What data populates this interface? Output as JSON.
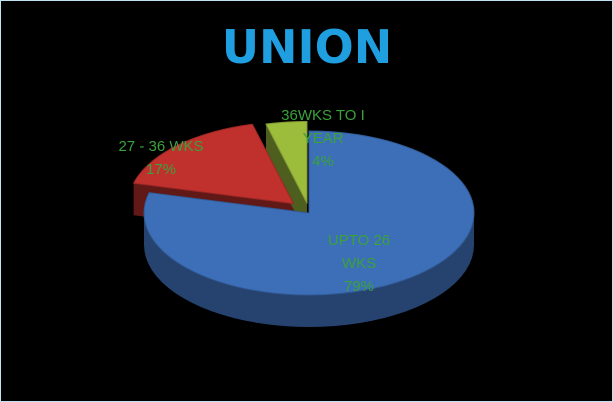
{
  "chart_data": {
    "type": "pie",
    "title": "UNION",
    "categories": [
      "UPTO 26 WKS",
      "27 - 36 WKS",
      "36WKS TO I YEAR"
    ],
    "values": [
      79,
      17,
      4
    ],
    "value_labels": [
      "79%",
      "17%",
      "4%"
    ],
    "colors": [
      "#3d6fb8",
      "#c0312e",
      "#9cbc3c"
    ],
    "label_color": "#3aa23a",
    "title_color": "#1f9fdf"
  }
}
